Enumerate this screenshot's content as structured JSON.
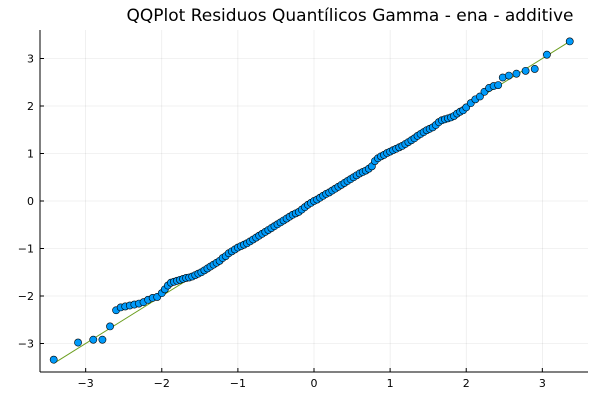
{
  "chart_data": {
    "type": "scatter",
    "title": "QQPlot Residuos Quantílicos Gamma - ena - additive",
    "xlabel": "",
    "ylabel": "",
    "xlim": [
      -3.6,
      3.6
    ],
    "ylim": [
      -3.6,
      3.6
    ],
    "xticks": [
      -3,
      -2,
      -1,
      0,
      1,
      2,
      3
    ],
    "yticks": [
      -3,
      -2,
      -1,
      0,
      1,
      2,
      3
    ],
    "xtick_labels": [
      "−3",
      "−2",
      "−1",
      "0",
      "1",
      "2",
      "3"
    ],
    "ytick_labels": [
      "−3",
      "−2",
      "−1",
      "0",
      "1",
      "2",
      "3"
    ],
    "grid": true,
    "legend": "none",
    "colors": {
      "points": "#009AFA",
      "reference_line": "#6B9E1F"
    },
    "reference_line": {
      "from": [
        -3.42,
        -3.42
      ],
      "to": [
        3.36,
        3.36
      ]
    },
    "points": {
      "x": [
        -3.42,
        -3.1,
        -2.9,
        -2.78,
        -2.68,
        -2.6,
        -2.54,
        -2.48,
        -2.42,
        -2.36,
        -2.3,
        -2.24,
        -2.18,
        -2.12,
        -2.06,
        -2.0,
        -1.96,
        -1.92,
        -1.88,
        -1.84,
        -1.8,
        -1.76,
        -1.72,
        -1.68,
        -1.64,
        -1.6,
        -1.56,
        -1.52,
        -1.48,
        -1.44,
        -1.4,
        -1.36,
        -1.32,
        -1.28,
        -1.24,
        -1.2,
        -1.16,
        -1.12,
        -1.08,
        -1.04,
        -1.0,
        -0.96,
        -0.92,
        -0.88,
        -0.84,
        -0.8,
        -0.76,
        -0.72,
        -0.68,
        -0.64,
        -0.6,
        -0.56,
        -0.52,
        -0.48,
        -0.44,
        -0.4,
        -0.36,
        -0.32,
        -0.28,
        -0.24,
        -0.2,
        -0.16,
        -0.12,
        -0.08,
        -0.04,
        0.0,
        0.04,
        0.08,
        0.12,
        0.16,
        0.2,
        0.24,
        0.28,
        0.32,
        0.36,
        0.4,
        0.44,
        0.48,
        0.52,
        0.56,
        0.6,
        0.64,
        0.68,
        0.72,
        0.76,
        0.8,
        0.84,
        0.88,
        0.92,
        0.96,
        1.0,
        1.04,
        1.08,
        1.12,
        1.16,
        1.2,
        1.24,
        1.28,
        1.32,
        1.36,
        1.4,
        1.44,
        1.48,
        1.52,
        1.56,
        1.6,
        1.64,
        1.68,
        1.72,
        1.76,
        1.8,
        1.84,
        1.88,
        1.92,
        1.96,
        2.0,
        2.06,
        2.12,
        2.18,
        2.24,
        2.3,
        2.36,
        2.42,
        2.48,
        2.56,
        2.66,
        2.78,
        2.9,
        3.06,
        3.36
      ],
      "y": [
        -3.34,
        -2.98,
        -2.92,
        -2.92,
        -2.64,
        -2.3,
        -2.24,
        -2.22,
        -2.2,
        -2.18,
        -2.16,
        -2.13,
        -2.08,
        -2.04,
        -2.02,
        -1.94,
        -1.86,
        -1.78,
        -1.72,
        -1.7,
        -1.68,
        -1.66,
        -1.64,
        -1.62,
        -1.61,
        -1.59,
        -1.56,
        -1.53,
        -1.5,
        -1.46,
        -1.42,
        -1.38,
        -1.34,
        -1.3,
        -1.26,
        -1.2,
        -1.16,
        -1.1,
        -1.06,
        -1.02,
        -0.98,
        -0.95,
        -0.92,
        -0.89,
        -0.85,
        -0.81,
        -0.77,
        -0.73,
        -0.69,
        -0.65,
        -0.61,
        -0.57,
        -0.53,
        -0.49,
        -0.45,
        -0.41,
        -0.37,
        -0.33,
        -0.29,
        -0.26,
        -0.23,
        -0.18,
        -0.13,
        -0.08,
        -0.04,
        0.0,
        0.03,
        0.07,
        0.11,
        0.15,
        0.18,
        0.22,
        0.26,
        0.3,
        0.34,
        0.38,
        0.42,
        0.46,
        0.5,
        0.54,
        0.58,
        0.61,
        0.64,
        0.68,
        0.73,
        0.84,
        0.9,
        0.94,
        0.97,
        1.01,
        1.04,
        1.07,
        1.1,
        1.13,
        1.16,
        1.2,
        1.24,
        1.28,
        1.32,
        1.37,
        1.41,
        1.45,
        1.49,
        1.52,
        1.55,
        1.6,
        1.66,
        1.7,
        1.72,
        1.74,
        1.76,
        1.79,
        1.84,
        1.88,
        1.91,
        1.97,
        2.06,
        2.14,
        2.2,
        2.3,
        2.38,
        2.42,
        2.44,
        2.6,
        2.64,
        2.68,
        2.74,
        2.78,
        3.08,
        3.36
      ]
    }
  }
}
